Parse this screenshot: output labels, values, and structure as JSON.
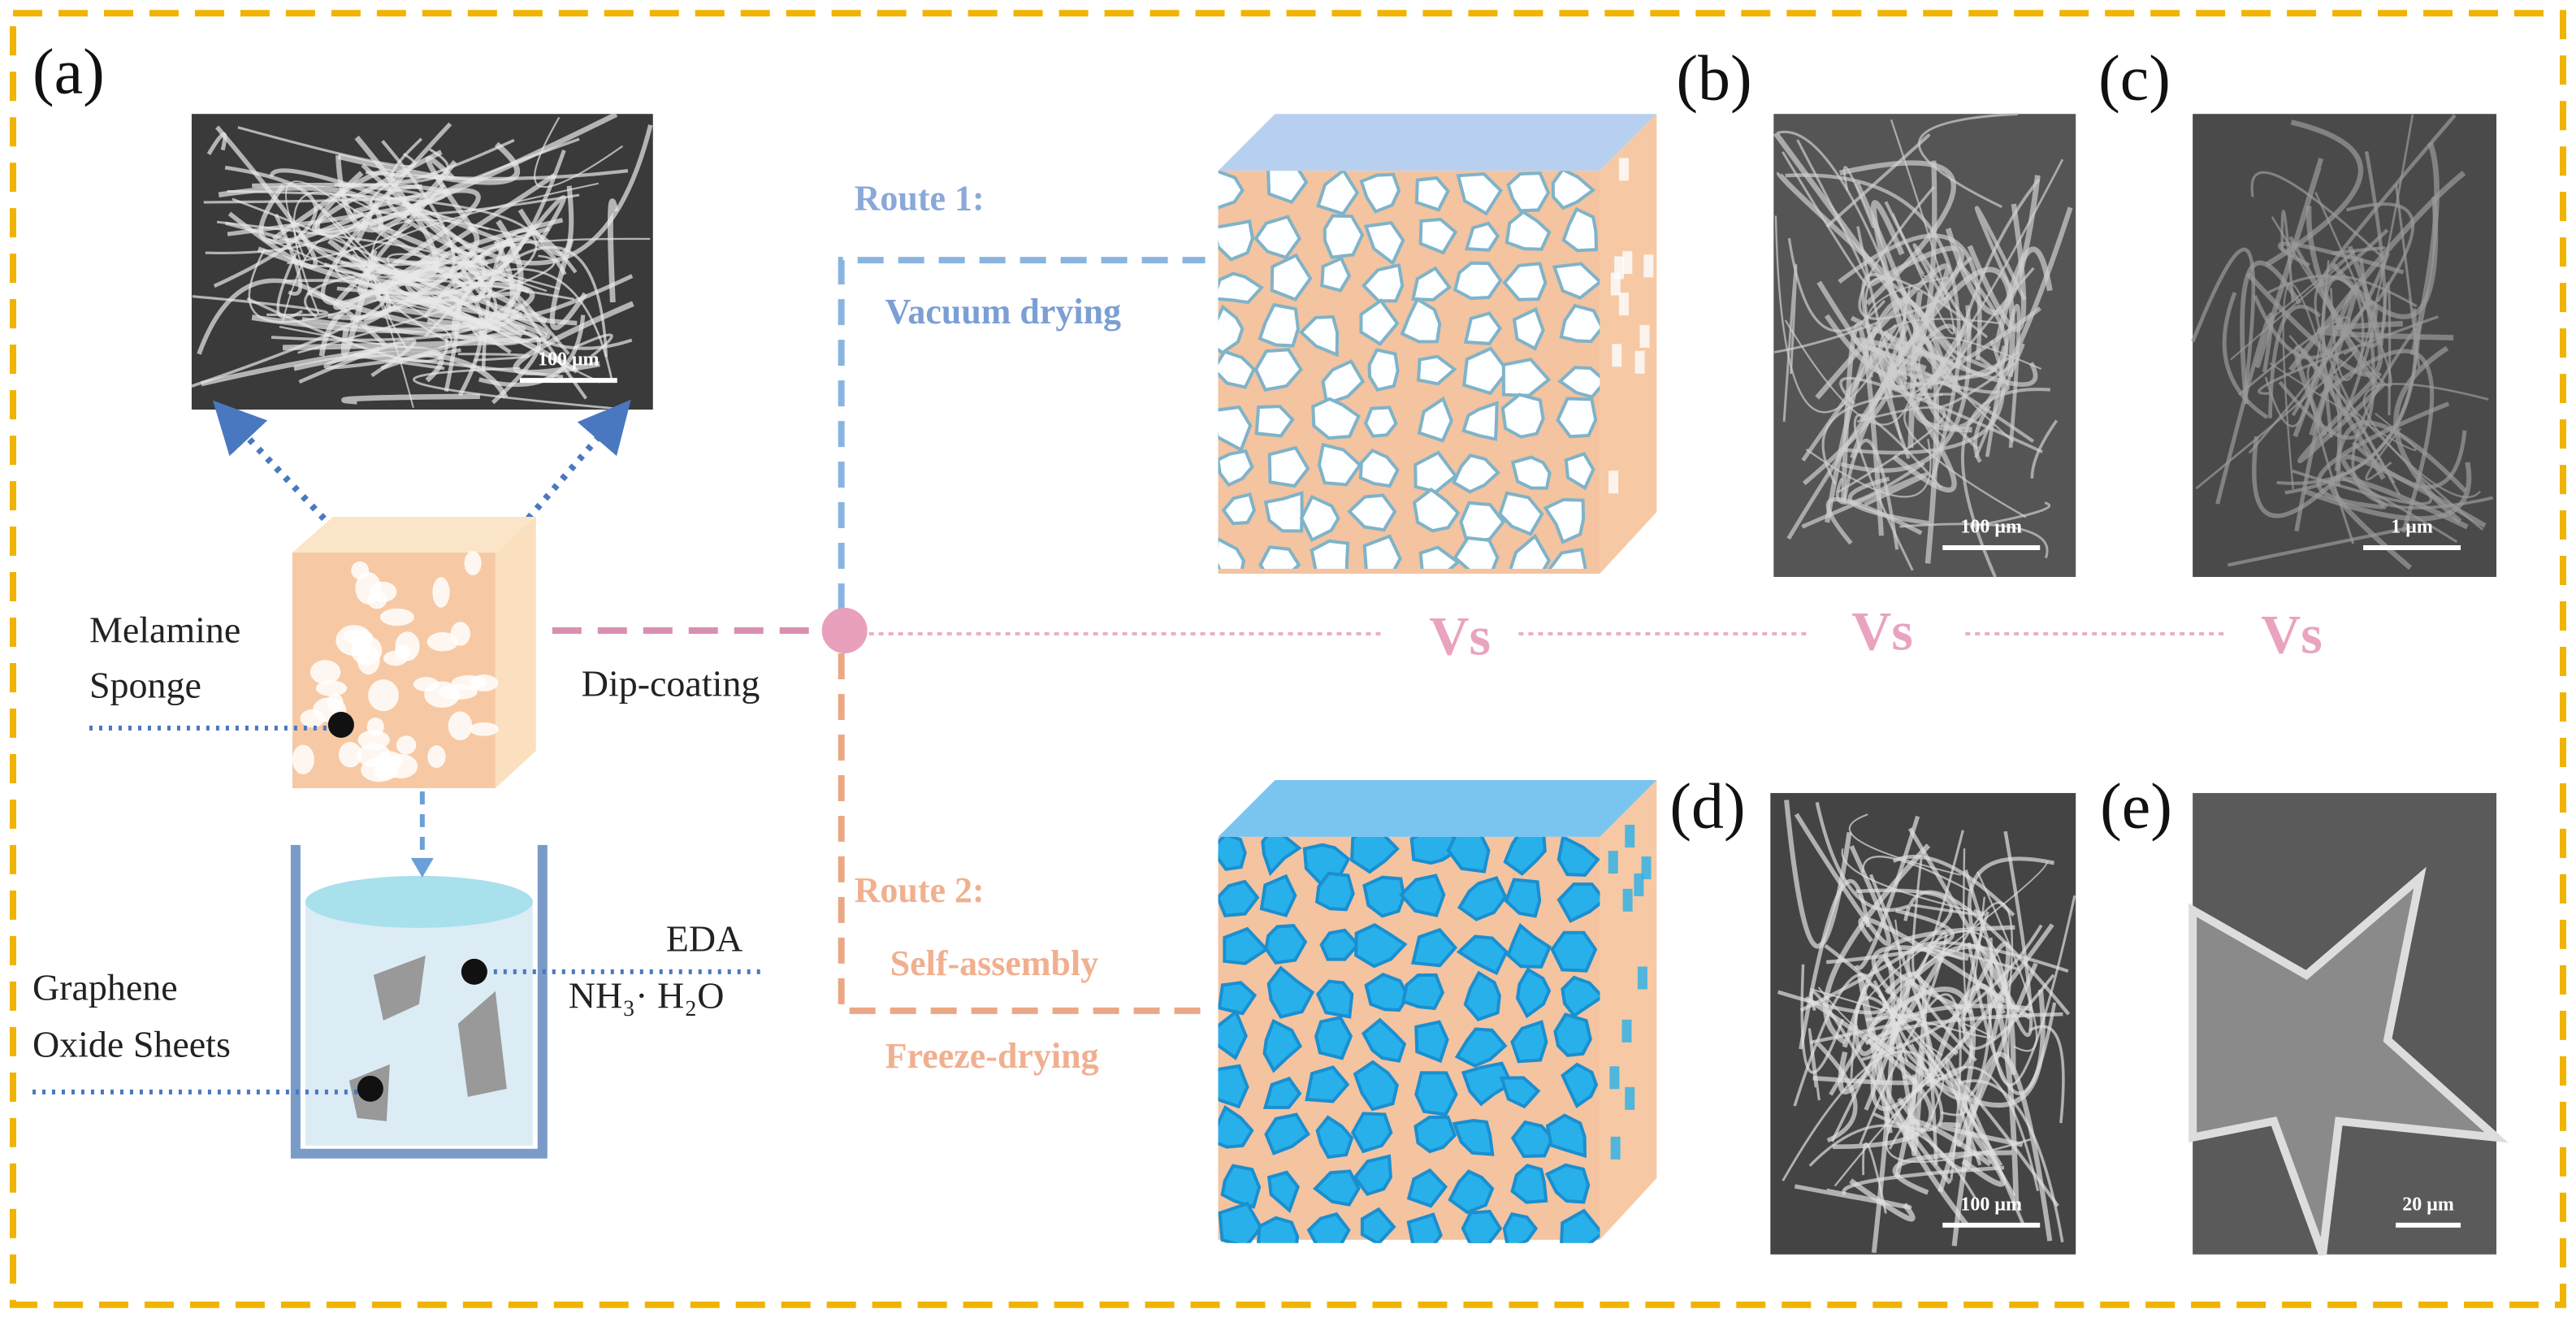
{
  "panels": {
    "a": "(a)",
    "b": "(b)",
    "c": "(c)",
    "d": "(d)",
    "e": "(e)"
  },
  "labels": {
    "melamine_sponge": [
      "Melamine",
      "Sponge"
    ],
    "dip_coating": "Dip-coating",
    "eda": "EDA",
    "ammonia": "NH₃· H₂O",
    "graphene_oxide": [
      "Graphene",
      "Oxide Sheets"
    ]
  },
  "routes": [
    {
      "name": "Route 1:",
      "steps": [
        "Vacuum drying"
      ]
    },
    {
      "name": "Route 2:",
      "steps": [
        "Self-assembly",
        "Freeze-drying"
      ]
    }
  ],
  "comparisons": [
    "Vs",
    "Vs",
    "Vs"
  ],
  "scale_bars": {
    "a": "100 μm",
    "b": "100 μm",
    "c": "1 μm",
    "d": "100 μm",
    "e": "20 μm"
  }
}
